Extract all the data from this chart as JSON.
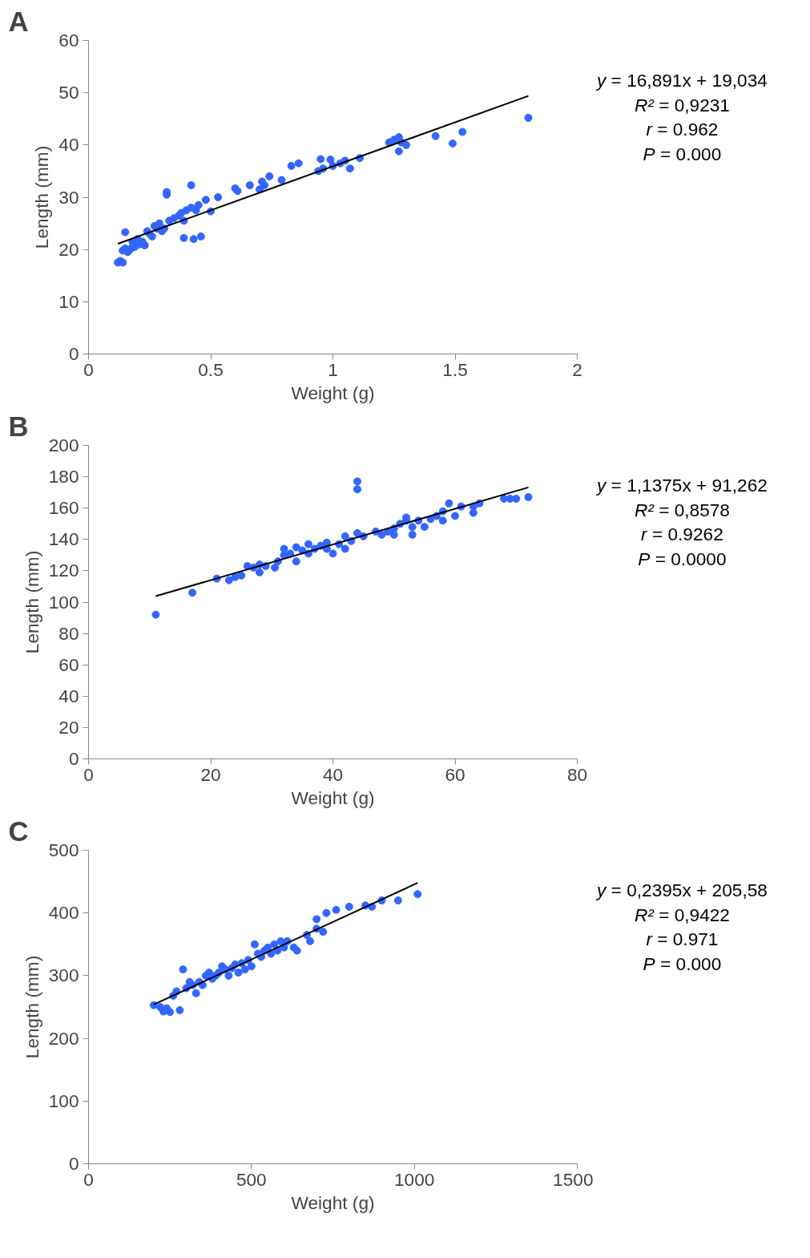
{
  "chart_data": [
    {
      "type": "scatter",
      "title": "A",
      "xlabel": "Weight (g)",
      "ylabel": "Length (mm)",
      "xlim": [
        0,
        2
      ],
      "xticks": [
        0,
        0.5,
        1,
        1.5,
        2
      ],
      "ylim": [
        0,
        60
      ],
      "yticks": [
        0,
        10,
        20,
        30,
        40,
        50,
        60
      ],
      "grid": false,
      "annotations": [
        "y = 16,891x + 19,034",
        "R² = 0,9231",
        "r = 0.962",
        "P = 0.000"
      ],
      "series": [
        {
          "marker": "circle",
          "color": "#3366ff",
          "x": [
            0.12,
            0.13,
            0.14,
            0.14,
            0.15,
            0.15,
            0.16,
            0.17,
            0.18,
            0.18,
            0.19,
            0.2,
            0.21,
            0.22,
            0.23,
            0.24,
            0.25,
            0.26,
            0.27,
            0.28,
            0.29,
            0.3,
            0.31,
            0.32,
            0.32,
            0.33,
            0.35,
            0.37,
            0.38,
            0.39,
            0.39,
            0.4,
            0.42,
            0.42,
            0.43,
            0.44,
            0.45,
            0.46,
            0.48,
            0.5,
            0.53,
            0.6,
            0.61,
            0.66,
            0.7,
            0.71,
            0.72,
            0.74,
            0.79,
            0.83,
            0.86,
            0.94,
            0.95,
            0.96,
            0.99,
            1.0,
            1.03,
            1.05,
            1.07,
            1.11,
            1.23,
            1.25,
            1.27,
            1.27,
            1.28,
            1.3,
            1.42,
            1.49,
            1.53,
            1.8
          ],
          "values": [
            17.5,
            17.8,
            17.5,
            19.8,
            23.3,
            20.2,
            19.5,
            20,
            20.5,
            21.5,
            20.5,
            22,
            21,
            21.5,
            20.8,
            23.5,
            23,
            22.5,
            24.5,
            24,
            25,
            23.5,
            24,
            31,
            30.5,
            25.5,
            26,
            26.5,
            27,
            25.5,
            22.2,
            27.5,
            32.3,
            28,
            22,
            27.5,
            28.5,
            22.5,
            29.5,
            27.3,
            30,
            31.7,
            31.2,
            32.3,
            31.5,
            33,
            32.3,
            34,
            33.3,
            36,
            36.5,
            35,
            37.3,
            35.5,
            37.2,
            36,
            36.5,
            37,
            35.5,
            37.5,
            40.5,
            41,
            41.5,
            38.8,
            40.5,
            40,
            41.7,
            40.3,
            42.5,
            45.2
          ]
        },
        {
          "type": "line",
          "color": "#000000",
          "x": [
            0.12,
            1.8
          ],
          "values": [
            21.1,
            49.4
          ]
        }
      ]
    },
    {
      "type": "scatter",
      "title": "B",
      "xlabel": "Weight (g)",
      "ylabel": "Length (mm)",
      "xlim": [
        0,
        80
      ],
      "xticks": [
        0,
        20,
        40,
        60,
        80
      ],
      "ylim": [
        0,
        200
      ],
      "yticks": [
        0,
        20,
        40,
        60,
        80,
        100,
        120,
        140,
        160,
        180,
        200
      ],
      "grid": false,
      "annotations": [
        "y = 1,1375x + 91,262",
        "R² = 0,8578",
        "r = 0.9262",
        "P = 0.0000"
      ],
      "series": [
        {
          "marker": "circle",
          "color": "#3366ff",
          "x": [
            11,
            17,
            21,
            23,
            24,
            25,
            26,
            27,
            28,
            28,
            29,
            30.5,
            31,
            32,
            32,
            33,
            34,
            34,
            35,
            36,
            36,
            37,
            38,
            39,
            39,
            40,
            41,
            42,
            42,
            43,
            44,
            44,
            44,
            45,
            47,
            48,
            49,
            50,
            50,
            51,
            52,
            52,
            53,
            53,
            54,
            55,
            56,
            57,
            58,
            58,
            59,
            60,
            61,
            63,
            63,
            64,
            68,
            69,
            70,
            72
          ],
          "values": [
            92,
            106,
            115,
            114,
            116,
            117,
            123,
            122,
            119,
            124,
            123,
            122,
            126,
            130,
            134,
            131,
            135,
            126,
            133,
            137,
            131,
            134,
            136,
            134,
            138,
            131,
            137,
            142,
            134,
            139,
            144,
            172,
            177,
            142,
            145,
            143,
            145,
            147,
            143,
            150,
            152,
            154,
            148,
            143,
            152,
            148,
            153,
            155,
            158,
            152,
            163,
            155,
            161,
            157,
            161,
            163,
            166,
            166,
            166,
            167
          ]
        },
        {
          "type": "line",
          "color": "#000000",
          "x": [
            11,
            72
          ],
          "values": [
            103.8,
            173.2
          ]
        }
      ]
    },
    {
      "type": "scatter",
      "title": "C",
      "xlabel": "Weight (g)",
      "ylabel": "Length (mm)",
      "xlim": [
        0,
        1500
      ],
      "xticks": [
        0,
        500,
        1000,
        1500
      ],
      "ylim": [
        0,
        500
      ],
      "yticks": [
        0,
        100,
        200,
        300,
        400,
        500
      ],
      "grid": false,
      "annotations": [
        "y = 0,2395x + 205,58",
        "R² = 0,9422",
        "r = 0.971",
        "P = 0.000"
      ],
      "series": [
        {
          "marker": "circle",
          "color": "#3366ff",
          "x": [
            200,
            220,
            230,
            240,
            250,
            260,
            270,
            280,
            290,
            300,
            310,
            320,
            330,
            340,
            350,
            360,
            370,
            380,
            390,
            400,
            410,
            420,
            430,
            440,
            450,
            460,
            470,
            480,
            490,
            500,
            510,
            520,
            530,
            540,
            550,
            560,
            570,
            580,
            590,
            600,
            610,
            630,
            640,
            670,
            680,
            700,
            700,
            720,
            730,
            760,
            800,
            850,
            870,
            900,
            950,
            1010
          ],
          "values": [
            253,
            250,
            243,
            248,
            242,
            268,
            275,
            245,
            310,
            280,
            290,
            285,
            272,
            290,
            285,
            300,
            305,
            295,
            300,
            305,
            315,
            310,
            300,
            312,
            318,
            305,
            320,
            310,
            325,
            315,
            350,
            335,
            330,
            340,
            345,
            335,
            350,
            340,
            355,
            345,
            355,
            345,
            340,
            365,
            355,
            375,
            390,
            370,
            400,
            405,
            410,
            412,
            410,
            420,
            420,
            430
          ]
        },
        {
          "type": "line",
          "color": "#000000",
          "x": [
            200,
            1010
          ],
          "values": [
            254,
            448
          ]
        }
      ]
    }
  ]
}
